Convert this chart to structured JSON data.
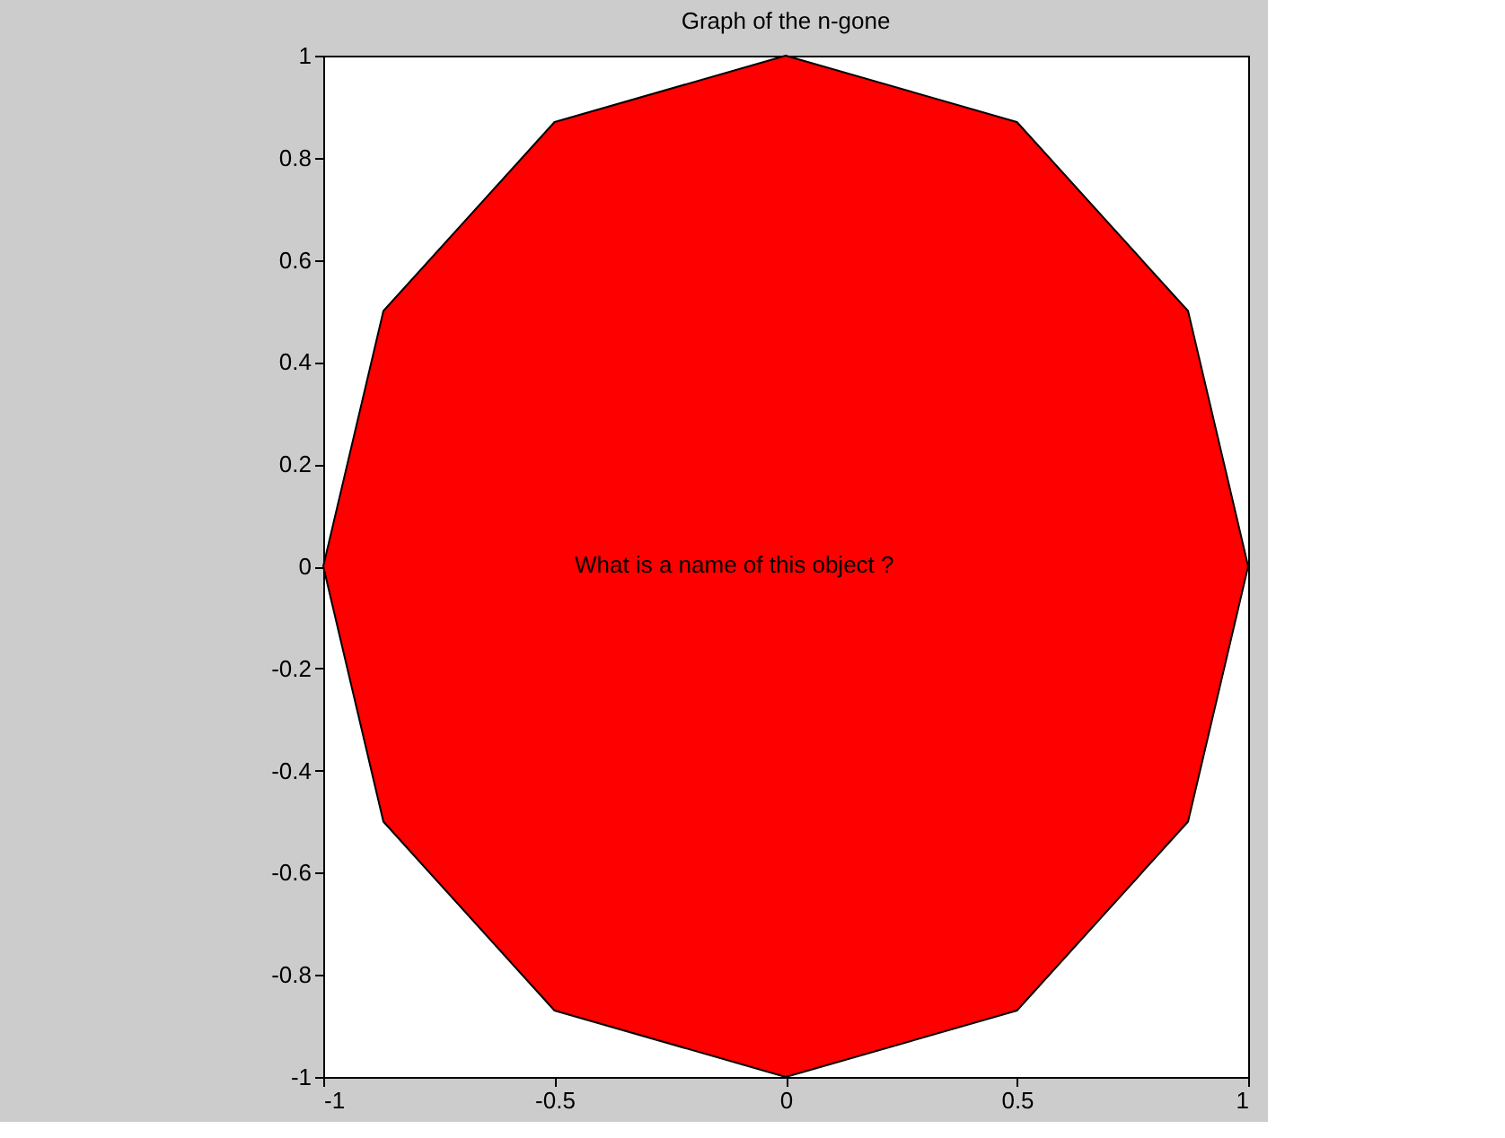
{
  "chart_data": {
    "type": "area",
    "title": "Graph of the n-gone",
    "x": [
      1,
      0.87,
      0.5,
      0,
      -0.5,
      -0.87,
      -1,
      -0.87,
      -0.5,
      0,
      0.5,
      0.87,
      1
    ],
    "series": [
      {
        "color": "#ff0000",
        "values": [
          0,
          0.5,
          0.87,
          1,
          0.87,
          0.5,
          0,
          -0.5,
          -0.87,
          -1,
          -0.87,
          -0.5,
          0
        ]
      }
    ],
    "xlim": [
      -1,
      1
    ],
    "xticks": [
      -1,
      -0.5,
      0,
      0.5,
      1
    ],
    "ylim": [
      -1,
      1
    ],
    "yticks": [
      -1,
      -0.8,
      -0.6,
      -0.4,
      -0.2,
      0,
      0.2,
      0.4,
      0.6,
      0.8,
      1
    ],
    "annotations": [
      "What is a name of this object ?"
    ],
    "grid": false,
    "legend": false,
    "marker": "none",
    "line_style": "solid"
  }
}
